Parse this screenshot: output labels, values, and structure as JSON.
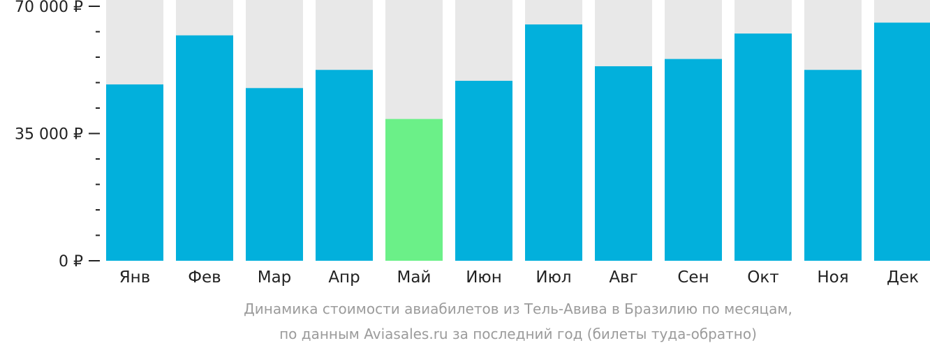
{
  "chart_data": {
    "type": "bar",
    "categories": [
      "Янв",
      "Фев",
      "Мар",
      "Апр",
      "Май",
      "Июн",
      "Июл",
      "Авг",
      "Сен",
      "Окт",
      "Ноя",
      "Дек"
    ],
    "values": [
      48500,
      62000,
      47500,
      52500,
      39000,
      49500,
      65000,
      53500,
      55500,
      62500,
      52500,
      65500
    ],
    "highlight_index": 4,
    "ylim": [
      0,
      73000
    ],
    "yticks": [
      {
        "value": 0,
        "label": "0 ₽"
      },
      {
        "value": 35000,
        "label": "35 000 ₽"
      },
      {
        "value": 70000,
        "label": "70 000 ₽"
      }
    ],
    "minor_tick_step": 7000,
    "colors": {
      "bar": "#02b0dc",
      "highlight": "#6bf088",
      "background_bar": "#e8e8e8",
      "axis": "#222222"
    },
    "caption": [
      "Динамика стоимости авиабилетов из Тель-Авива в Бразилию по месяцам,",
      "по данным Aviasales.ru за последний год (билеты туда-обратно)"
    ]
  }
}
